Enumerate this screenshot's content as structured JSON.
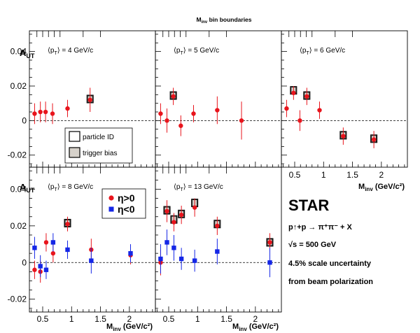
{
  "figure": {
    "top_label_main": "M",
    "top_label_sub": "inv",
    "top_label_rest": " bin boundaries"
  },
  "info": {
    "experiment": "STAR",
    "reaction": "p↑+p → π⁺π⁻ + X",
    "energy": "√s = 500 GeV",
    "scale_uncertainty": "4.5% scale uncertainty",
    "uncertainty_source": "from beam polarization"
  },
  "legend_sys": {
    "particle_id": "particle ID",
    "trigger_bias": "trigger bias"
  },
  "legend_eta": {
    "pos": "η>0",
    "neg": "η<0"
  },
  "colors": {
    "eta_pos": "#e8141c",
    "eta_neg": "#1426e6",
    "trigger_bias_fill": "#d6d1ca"
  },
  "chart_data": [
    {
      "type": "scatter",
      "panel_label": "⟨p_T⟩ = 4 GeV/c",
      "ylabel": "A_UT",
      "ylim": [
        -0.027,
        0.052
      ],
      "xlim": [
        0.27,
        2.45
      ],
      "yticks": [
        -0.02,
        0,
        0.02,
        0.04
      ],
      "series": [
        {
          "name": "η>0",
          "x": [
            0.36,
            0.46,
            0.55,
            0.67,
            0.93,
            1.32
          ],
          "y": [
            0.004,
            0.005,
            0.005,
            0.004,
            0.007,
            0.012
          ],
          "yerr": [
            0.006,
            0.006,
            0.006,
            0.006,
            0.005,
            0.007
          ]
        }
      ],
      "syst_boxes": [
        {
          "x": 1.32,
          "y": 0.0125
        }
      ]
    },
    {
      "type": "scatter",
      "panel_label": "⟨p_T⟩ = 5 GeV/c",
      "ylim": [
        -0.027,
        0.052
      ],
      "xlim": [
        0.27,
        2.45
      ],
      "series": [
        {
          "name": "η>0",
          "x": [
            0.36,
            0.47,
            0.58,
            0.71,
            0.93,
            1.34,
            1.76
          ],
          "y": [
            0.004,
            0.0,
            0.014,
            -0.003,
            0.004,
            0.006,
            0.0
          ],
          "yerr": [
            0.006,
            0.007,
            0.005,
            0.006,
            0.005,
            0.008,
            0.011
          ]
        }
      ],
      "syst_boxes": [
        {
          "x": 0.58,
          "y": 0.0145
        }
      ]
    },
    {
      "type": "scatter",
      "panel_label": "⟨p_T⟩ = 6 GeV/c",
      "xlabel": "M_inv (GeV/c²)",
      "xticks": [
        0.5,
        1,
        1.5,
        2
      ],
      "ylim": [
        -0.027,
        0.052
      ],
      "xlim": [
        0.27,
        2.45
      ],
      "series": [
        {
          "name": "η>0",
          "x": [
            0.36,
            0.48,
            0.59,
            0.71,
            0.93,
            1.34,
            1.87
          ],
          "y": [
            0.007,
            0.016,
            0.0,
            0.014,
            0.006,
            -0.009,
            -0.011
          ],
          "yerr": [
            0.005,
            0.004,
            0.006,
            0.005,
            0.005,
            0.005,
            0.005
          ]
        }
      ],
      "syst_boxes": [
        {
          "x": 0.48,
          "y": 0.0175
        },
        {
          "x": 0.71,
          "y": 0.0145
        },
        {
          "x": 1.34,
          "y": -0.0085
        },
        {
          "x": 1.87,
          "y": -0.0105
        }
      ]
    },
    {
      "type": "scatter",
      "panel_label": "⟨p_T⟩ = 8 GeV/c",
      "ylabel": "A_UT",
      "xlabel": "M_inv (GeV/c²)",
      "ylim": [
        -0.027,
        0.052
      ],
      "xlim": [
        0.27,
        2.45
      ],
      "yticks": [
        -0.02,
        0,
        0.02,
        0.04
      ],
      "xticks": [
        0.5,
        1,
        1.5,
        2
      ],
      "series": [
        {
          "name": "η>0",
          "x": [
            0.36,
            0.46,
            0.56,
            0.68,
            0.93,
            1.34,
            2.02
          ],
          "y": [
            -0.004,
            -0.005,
            0.011,
            0.005,
            0.021,
            0.007,
            0.004
          ],
          "yerr": [
            0.005,
            0.006,
            0.005,
            0.005,
            0.004,
            0.006,
            0.005
          ]
        },
        {
          "name": "η<0",
          "x": [
            0.36,
            0.46,
            0.56,
            0.68,
            0.93,
            1.34,
            2.02
          ],
          "y": [
            0.008,
            -0.002,
            -0.004,
            0.011,
            0.007,
            0.001,
            0.005
          ],
          "yerr": [
            0.006,
            0.006,
            0.005,
            0.005,
            0.005,
            0.007,
            0.005
          ]
        }
      ],
      "syst_boxes": [
        {
          "x": 0.93,
          "y": 0.0215
        }
      ]
    },
    {
      "type": "scatter",
      "panel_label": "⟨p_T⟩ = 13 GeV/c",
      "xlabel": "M_inv (GeV/c²)",
      "ylim": [
        -0.027,
        0.052
      ],
      "xlim": [
        0.27,
        2.45
      ],
      "xticks": [
        0.5,
        1,
        1.5,
        2
      ],
      "series": [
        {
          "name": "η>0",
          "x": [
            0.36,
            0.47,
            0.59,
            0.72,
            0.95,
            1.34,
            2.25
          ],
          "y": [
            0.0,
            0.028,
            0.022,
            0.026,
            0.03,
            0.02,
            0.011
          ],
          "yerr": [
            0.007,
            0.006,
            0.005,
            0.005,
            0.005,
            0.005,
            0.005
          ]
        },
        {
          "name": "η<0",
          "x": [
            0.36,
            0.47,
            0.59,
            0.72,
            0.95,
            1.34,
            2.25
          ],
          "y": [
            0.002,
            0.011,
            0.008,
            0.002,
            0.001,
            0.006,
            0.0
          ],
          "yerr": [
            0.008,
            0.007,
            0.007,
            0.006,
            0.006,
            0.007,
            0.008
          ]
        }
      ],
      "syst_boxes": [
        {
          "x": 0.47,
          "y": 0.0285
        },
        {
          "x": 0.59,
          "y": 0.0235
        },
        {
          "x": 0.72,
          "y": 0.0265
        },
        {
          "x": 0.95,
          "y": 0.0325
        },
        {
          "x": 1.34,
          "y": 0.021
        },
        {
          "x": 2.25,
          "y": 0.011
        }
      ]
    }
  ]
}
